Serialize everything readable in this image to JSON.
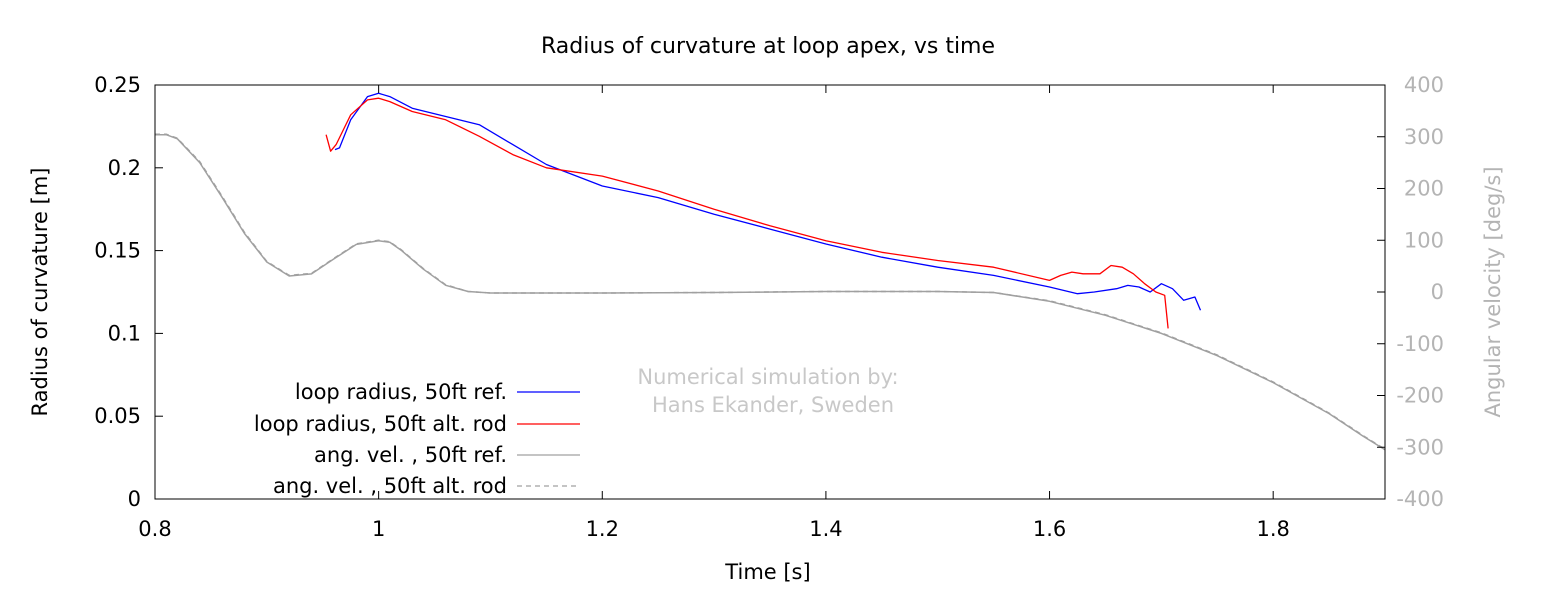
{
  "chart_data": {
    "type": "line",
    "title": "Radius of curvature at loop apex, vs time",
    "xlabel": "Time [s]",
    "ylabel": "Radius of curvature [m]",
    "y2label": "Angular velocity [deg/s]",
    "xlim": [
      0.8,
      1.9
    ],
    "ylim": [
      0,
      0.25
    ],
    "y2lim": [
      -400,
      400
    ],
    "xticks": [
      "0.8",
      "1",
      "1.2",
      "1.4",
      "1.6",
      "1.8"
    ],
    "xtick_values": [
      0.8,
      1.0,
      1.2,
      1.4,
      1.6,
      1.8
    ],
    "yticks": [
      "0",
      "0.05",
      "0.1",
      "0.15",
      "0.2",
      "0.25"
    ],
    "ytick_values": [
      0,
      0.05,
      0.1,
      0.15,
      0.2,
      0.25
    ],
    "y2ticks": [
      "-400",
      "-300",
      "-200",
      "-100",
      "0",
      "100",
      "200",
      "300",
      "400"
    ],
    "y2tick_values": [
      -400,
      -300,
      -200,
      -100,
      0,
      100,
      200,
      300,
      400
    ],
    "grid": false,
    "legend_position": "bottom-left",
    "annotation": [
      "Numerical simulation by:",
      "Hans Ekander, Sweden"
    ],
    "colors": {
      "radius_ref": "#0000ff",
      "radius_alt": "#ff0000",
      "ang_vel": "#a0a0a0",
      "axis_right": "#b4b4b4",
      "annotation": "#c8c8c8"
    },
    "series": [
      {
        "name": "loop radius, 50ft ref.",
        "axis": "left",
        "style": "solid",
        "color": "#0000ff",
        "x": [
          0.961,
          0.965,
          0.975,
          0.99,
          1.0,
          1.01,
          1.03,
          1.06,
          1.09,
          1.12,
          1.15,
          1.2,
          1.25,
          1.3,
          1.35,
          1.4,
          1.45,
          1.5,
          1.55,
          1.6,
          1.625,
          1.64,
          1.66,
          1.67,
          1.68,
          1.69,
          1.7,
          1.71,
          1.72,
          1.73,
          1.735
        ],
        "y": [
          0.211,
          0.212,
          0.229,
          0.243,
          0.245,
          0.243,
          0.236,
          0.231,
          0.226,
          0.214,
          0.202,
          0.189,
          0.182,
          0.172,
          0.163,
          0.154,
          0.146,
          0.14,
          0.135,
          0.128,
          0.124,
          0.125,
          0.127,
          0.129,
          0.128,
          0.125,
          0.13,
          0.127,
          0.12,
          0.122,
          0.114
        ]
      },
      {
        "name": "loop radius, 50ft alt. rod",
        "axis": "left",
        "style": "solid",
        "color": "#ff0000",
        "x": [
          0.953,
          0.957,
          0.962,
          0.975,
          0.99,
          1.0,
          1.01,
          1.03,
          1.06,
          1.09,
          1.12,
          1.15,
          1.2,
          1.25,
          1.3,
          1.35,
          1.4,
          1.45,
          1.5,
          1.55,
          1.6,
          1.61,
          1.62,
          1.63,
          1.645,
          1.655,
          1.665,
          1.675,
          1.685,
          1.695,
          1.703,
          1.706
        ],
        "y": [
          0.22,
          0.21,
          0.214,
          0.232,
          0.241,
          0.242,
          0.24,
          0.234,
          0.229,
          0.219,
          0.208,
          0.2,
          0.195,
          0.186,
          0.175,
          0.165,
          0.156,
          0.149,
          0.144,
          0.14,
          0.132,
          0.135,
          0.137,
          0.136,
          0.136,
          0.141,
          0.14,
          0.136,
          0.13,
          0.125,
          0.123,
          0.103
        ]
      },
      {
        "name": "ang. vel. , 50ft ref.",
        "axis": "right",
        "style": "solid",
        "color": "#a0a0a0",
        "x": [
          0.8,
          0.81,
          0.82,
          0.84,
          0.86,
          0.88,
          0.9,
          0.92,
          0.94,
          0.96,
          0.98,
          1.0,
          1.01,
          1.02,
          1.04,
          1.06,
          1.08,
          1.1,
          1.2,
          1.3,
          1.4,
          1.5,
          1.55,
          1.6,
          1.65,
          1.7,
          1.75,
          1.8,
          1.85,
          1.88,
          1.9
        ],
        "y": [
          304,
          304,
          296,
          250,
          183,
          113,
          58,
          31,
          35,
          64,
          92,
          99,
          96,
          81,
          44,
          13,
          1,
          -2,
          -2,
          -1,
          1,
          1,
          -1,
          -18,
          -45,
          -80,
          -123,
          -175,
          -235,
          -278,
          -305
        ]
      },
      {
        "name": "ang. vel. , 50ft alt. rod",
        "axis": "right",
        "style": "dashed",
        "color": "#a0a0a0",
        "x": [
          0.8,
          0.81,
          0.82,
          0.84,
          0.86,
          0.88,
          0.9,
          0.92,
          0.94,
          0.96,
          0.98,
          1.0,
          1.01,
          1.02,
          1.04,
          1.06,
          1.08,
          1.1,
          1.2,
          1.3,
          1.4,
          1.5,
          1.55,
          1.6,
          1.65,
          1.7,
          1.75,
          1.8,
          1.85,
          1.88,
          1.9
        ],
        "y": [
          305,
          305,
          297,
          252,
          185,
          115,
          59,
          32,
          36,
          65,
          93,
          100,
          97,
          82,
          45,
          14,
          1,
          -2,
          -2,
          -1,
          1,
          1,
          -1,
          -17,
          -44,
          -79,
          -122,
          -174,
          -234,
          -277,
          -304
        ]
      }
    ]
  }
}
